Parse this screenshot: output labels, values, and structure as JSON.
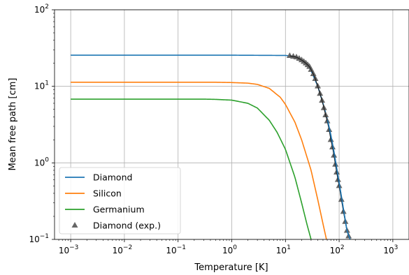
{
  "chart_data": {
    "type": "line",
    "title": "",
    "xlabel": "Temperature [K]",
    "ylabel": "Mean free path [cm]",
    "xscale": "log",
    "yscale": "log",
    "xlim": [
      0.0005,
      2000
    ],
    "ylim": [
      0.1,
      100
    ],
    "grid": true,
    "legend_position": "lower-left",
    "x_ticks": [
      {
        "value": 0.001,
        "base": "10",
        "exp": "−3"
      },
      {
        "value": 0.01,
        "base": "10",
        "exp": "−2"
      },
      {
        "value": 0.1,
        "base": "10",
        "exp": "−1"
      },
      {
        "value": 1,
        "base": "10",
        "exp": "0"
      },
      {
        "value": 10,
        "base": "10",
        "exp": "1"
      },
      {
        "value": 100,
        "base": "10",
        "exp": "2"
      },
      {
        "value": 1000,
        "base": "10",
        "exp": "3"
      }
    ],
    "y_ticks": [
      {
        "value": 0.1,
        "base": "10",
        "exp": "−1"
      },
      {
        "value": 1,
        "base": "10",
        "exp": "0"
      },
      {
        "value": 10,
        "base": "10",
        "exp": "1"
      },
      {
        "value": 100,
        "base": "10",
        "exp": "2"
      }
    ],
    "series": [
      {
        "name": "Diamond",
        "kind": "line",
        "color": "#1f77b4",
        "plateau": 25.5,
        "x_end": 160,
        "x": [
          0.001,
          1,
          10,
          15,
          20,
          25,
          30,
          40,
          50,
          60,
          70,
          80,
          90,
          100,
          120,
          140,
          160
        ],
        "y": [
          25.5,
          25.5,
          25.3,
          24.6,
          22.5,
          19.5,
          16,
          10,
          6,
          3.8,
          2.3,
          1.4,
          0.85,
          0.55,
          0.25,
          0.13,
          0.1
        ]
      },
      {
        "name": "Silicon",
        "kind": "line",
        "color": "#ff7f0e",
        "plateau": 11.3,
        "x_end": 58,
        "x": [
          0.001,
          0.5,
          1,
          2,
          3,
          5,
          8,
          10,
          15,
          20,
          30,
          40,
          50,
          58
        ],
        "y": [
          11.3,
          11.3,
          11.2,
          11.0,
          10.6,
          9.4,
          7.2,
          5.8,
          3.4,
          2.0,
          0.8,
          0.33,
          0.16,
          0.1
        ]
      },
      {
        "name": "Germanium",
        "kind": "line",
        "color": "#2ca02c",
        "plateau": 6.8,
        "x_end": 30,
        "x": [
          0.001,
          0.3,
          0.5,
          1,
          2,
          3,
          5,
          7,
          10,
          15,
          20,
          25,
          30
        ],
        "y": [
          6.8,
          6.8,
          6.75,
          6.6,
          6.0,
          5.2,
          3.6,
          2.5,
          1.5,
          0.65,
          0.3,
          0.16,
          0.1
        ]
      },
      {
        "name": "Diamond (exp.)",
        "kind": "scatter",
        "color": "#666666",
        "x": [
          12,
          14,
          16,
          18,
          20,
          22,
          24,
          26,
          28,
          30,
          33,
          36,
          40,
          44,
          48,
          52,
          56,
          60,
          65,
          70,
          75,
          80,
          85,
          90,
          95,
          100,
          110,
          120,
          130,
          140,
          150
        ],
        "y": [
          25,
          24.5,
          24,
          23,
          22,
          21,
          20,
          19,
          18,
          16.5,
          14.5,
          12.5,
          10,
          8,
          6.5,
          5.2,
          4.2,
          3.5,
          2.7,
          2.0,
          1.6,
          1.25,
          0.95,
          0.75,
          0.6,
          0.5,
          0.33,
          0.23,
          0.17,
          0.13,
          0.11
        ]
      }
    ]
  }
}
